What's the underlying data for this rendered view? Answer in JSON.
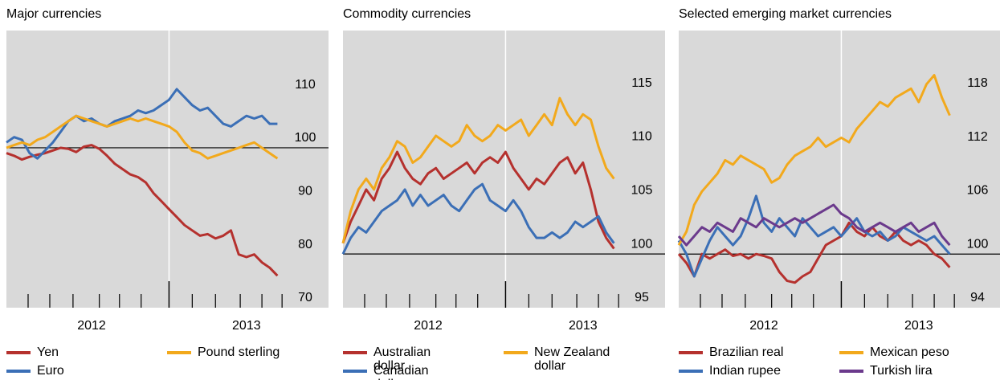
{
  "chart_data": [
    {
      "type": "line",
      "title": "Major currencies",
      "x": [
        2011.95,
        2012.0,
        2012.05,
        2012.1,
        2012.15,
        2012.2,
        2012.25,
        2012.3,
        2012.35,
        2012.4,
        2012.45,
        2012.5,
        2012.55,
        2012.6,
        2012.65,
        2012.7,
        2012.75,
        2012.8,
        2012.85,
        2012.9,
        2012.95,
        2013.0,
        2013.05,
        2013.1,
        2013.15,
        2013.2,
        2013.25,
        2013.3,
        2013.35,
        2013.4,
        2013.45,
        2013.5,
        2013.55,
        2013.6,
        2013.65,
        2013.7
      ],
      "xlim": [
        2011.95,
        2014.03
      ],
      "xticks": [
        {
          "value": 2012.5,
          "label": "2012"
        },
        {
          "value": 2013.5,
          "label": "2013"
        }
      ],
      "xminorticks": [
        2012.09,
        2012.23,
        2012.38,
        2012.55,
        2012.68,
        2012.82,
        2013.15,
        2013.3,
        2013.46,
        2013.6,
        2013.73
      ],
      "xmajorticks": [
        2013
      ],
      "ylim": [
        70,
        122
      ],
      "yticks": [
        70,
        80,
        90,
        100,
        110
      ],
      "baseline": 100,
      "series": [
        {
          "name": "Yen",
          "color": "#b5312e",
          "values": [
            99,
            98.5,
            97.8,
            98.3,
            98.7,
            99,
            99.5,
            100,
            99.8,
            99.2,
            100.2,
            100.5,
            99.8,
            98.5,
            97,
            96,
            95,
            94.5,
            93.5,
            91.5,
            90,
            88.5,
            87,
            85.5,
            84.5,
            83.5,
            83.8,
            83,
            83.5,
            84.5,
            80,
            79.5,
            80,
            78.5,
            77.5,
            76
          ]
        },
        {
          "name": "Euro",
          "color": "#3b6fb6",
          "values": [
            101,
            102,
            101.5,
            99,
            98,
            99.5,
            101,
            103,
            105,
            106,
            105,
            105.5,
            104.5,
            104,
            105,
            105.5,
            106,
            107,
            106.5,
            107,
            108,
            109,
            111,
            109.5,
            108,
            107,
            107.5,
            106,
            104.5,
            104,
            105,
            106,
            105.5,
            106,
            104.5,
            104.5
          ]
        },
        {
          "name": "Pound sterling",
          "color": "#f2a91c",
          "values": [
            100,
            100.5,
            101,
            100.5,
            101.5,
            102,
            103,
            104,
            105,
            106,
            105.5,
            105,
            104.5,
            104,
            104.5,
            105,
            105.5,
            105,
            105.5,
            105,
            104.5,
            104,
            103,
            101,
            99.5,
            99,
            98,
            98.5,
            99,
            99.5,
            100,
            100.5,
            101,
            100,
            99,
            98
          ]
        }
      ]
    },
    {
      "type": "line",
      "title": "Commodity currencies",
      "x": [
        2011.95,
        2012.0,
        2012.05,
        2012.1,
        2012.15,
        2012.2,
        2012.25,
        2012.3,
        2012.35,
        2012.4,
        2012.45,
        2012.5,
        2012.55,
        2012.6,
        2012.65,
        2012.7,
        2012.75,
        2012.8,
        2012.85,
        2012.9,
        2012.95,
        2013.0,
        2013.05,
        2013.1,
        2013.15,
        2013.2,
        2013.25,
        2013.3,
        2013.35,
        2013.4,
        2013.45,
        2013.5,
        2013.55,
        2013.6,
        2013.65,
        2013.7
      ],
      "xlim": [
        2011.95,
        2014.03
      ],
      "xticks": [
        {
          "value": 2012.5,
          "label": "2012"
        },
        {
          "value": 2013.5,
          "label": "2013"
        }
      ],
      "xminorticks": [
        2012.09,
        2012.23,
        2012.38,
        2012.55,
        2012.68,
        2012.82,
        2013.15,
        2013.3,
        2013.46,
        2013.6,
        2013.73
      ],
      "xmajorticks": [
        2013
      ],
      "ylim": [
        95,
        120.8
      ],
      "yticks": [
        95,
        100,
        105,
        110,
        115
      ],
      "baseline": 100,
      "series": [
        {
          "name": "Australian dollar",
          "color": "#b5312e",
          "values": [
            101,
            103,
            104.5,
            106,
            105,
            107,
            108,
            109.5,
            108,
            107,
            106.5,
            107.5,
            108,
            107,
            107.5,
            108,
            108.5,
            107.5,
            108.5,
            109,
            108.5,
            109.5,
            108,
            107,
            106,
            107,
            106.5,
            107.5,
            108.5,
            109,
            107.5,
            108.5,
            106,
            103,
            101.5,
            100.5
          ]
        },
        {
          "name": "Canadian dollar",
          "color": "#3b6fb6",
          "values": [
            100,
            101.5,
            102.5,
            102,
            103,
            104,
            104.5,
            105,
            106,
            104.5,
            105.5,
            104.5,
            105,
            105.5,
            104.5,
            104,
            105,
            106,
            106.5,
            105,
            104.5,
            104,
            105,
            104,
            102.5,
            101.5,
            101.5,
            102,
            101.5,
            102,
            103,
            102.5,
            103,
            103.5,
            102,
            101
          ]
        },
        {
          "name": "New Zealand dollar",
          "color": "#f2a91c",
          "values": [
            101,
            104,
            106,
            107,
            106,
            108,
            109,
            110.5,
            110,
            108.5,
            109,
            110,
            111,
            110.5,
            110,
            110.5,
            112,
            111,
            110.5,
            111,
            112,
            111.5,
            112,
            112.5,
            111,
            112,
            113,
            112,
            114.5,
            113,
            112,
            113,
            112.5,
            110,
            108,
            107
          ]
        }
      ]
    },
    {
      "type": "line",
      "title": "Selected emerging market currencies",
      "x": [
        2011.95,
        2012.0,
        2012.05,
        2012.1,
        2012.15,
        2012.2,
        2012.25,
        2012.3,
        2012.35,
        2012.4,
        2012.45,
        2012.5,
        2012.55,
        2012.6,
        2012.65,
        2012.7,
        2012.75,
        2012.8,
        2012.85,
        2012.9,
        2012.95,
        2013.0,
        2013.05,
        2013.1,
        2013.15,
        2013.2,
        2013.25,
        2013.3,
        2013.35,
        2013.4,
        2013.45,
        2013.5,
        2013.55,
        2013.6,
        2013.65,
        2013.7
      ],
      "xlim": [
        2011.95,
        2014.03
      ],
      "xticks": [
        {
          "value": 2012.5,
          "label": "2012"
        },
        {
          "value": 2013.5,
          "label": "2013"
        }
      ],
      "xminorticks": [
        2012.09,
        2012.23,
        2012.38,
        2012.55,
        2012.68,
        2012.82,
        2013.15,
        2013.3,
        2013.46,
        2013.6,
        2013.73
      ],
      "xmajorticks": [
        2013
      ],
      "ylim": [
        94,
        125
      ],
      "yticks": [
        94,
        100,
        106,
        112,
        118
      ],
      "baseline": 100,
      "series": [
        {
          "name": "Brazilian real",
          "color": "#b5312e",
          "values": [
            100,
            99,
            97.5,
            100,
            99.5,
            100,
            100.5,
            99.8,
            100,
            99.5,
            100,
            99.8,
            99.5,
            98,
            97,
            96.8,
            97.5,
            98,
            99.5,
            101,
            101.5,
            102,
            103.5,
            102.5,
            102,
            103,
            102,
            101.5,
            102.5,
            101.5,
            101,
            101.5,
            101,
            100,
            99.5,
            98.5
          ]
        },
        {
          "name": "Indian rupee",
          "color": "#3b6fb6",
          "values": [
            101.5,
            100,
            97.5,
            99.5,
            101.5,
            103,
            102,
            101,
            102,
            104,
            106.5,
            103.5,
            102.5,
            104,
            103,
            102,
            104,
            103,
            102,
            102.5,
            103,
            102,
            103,
            104,
            102.5,
            102,
            102.5,
            101.5,
            102,
            103,
            102.5,
            102,
            101.5,
            102,
            101,
            100
          ]
        },
        {
          "name": "Mexican peso",
          "color": "#f2a91c",
          "values": [
            101,
            102.5,
            105.5,
            107,
            108,
            109,
            110.5,
            110,
            111,
            110.5,
            110,
            109.5,
            108,
            108.5,
            110,
            111,
            111.5,
            112,
            113,
            112,
            112.5,
            113,
            112.5,
            114,
            115,
            116,
            117,
            116.5,
            117.5,
            118,
            118.5,
            117,
            119,
            120,
            117.5,
            115.5
          ]
        },
        {
          "name": "Turkish lira",
          "color": "#6b3a8c",
          "values": [
            102,
            101,
            102,
            103,
            102.5,
            103.5,
            103,
            102.5,
            104,
            103.5,
            103,
            104,
            103.5,
            103,
            103.5,
            104,
            103.5,
            104,
            104.5,
            105,
            105.5,
            104.5,
            104,
            103,
            102.5,
            103,
            103.5,
            103,
            102.5,
            103,
            103.5,
            102.5,
            103,
            103.5,
            102,
            101
          ]
        }
      ]
    }
  ]
}
